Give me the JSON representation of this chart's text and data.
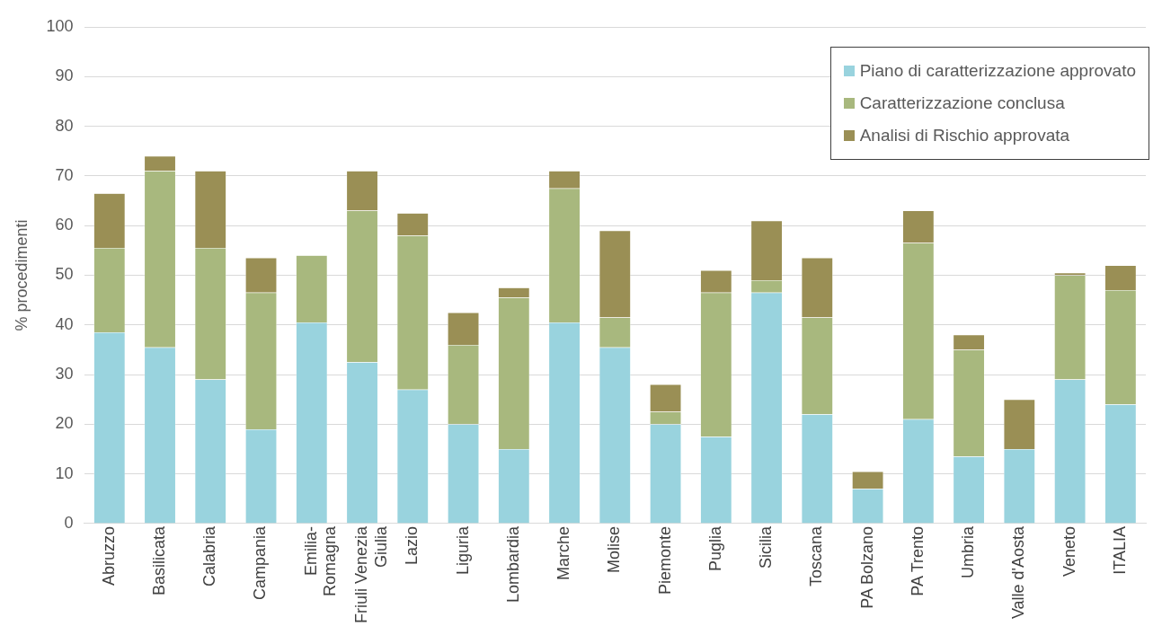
{
  "chart_data": {
    "type": "bar",
    "stacked": true,
    "ylabel": "% procedimenti",
    "categories": [
      "Abruzzo",
      "Basilicata",
      "Calabria",
      "Campania",
      "Emilia-Romagna",
      "Friuli Venezia Giulia",
      "Lazio",
      "Liguria",
      "Lombardia",
      "Marche",
      "Molise",
      "Piemonte",
      "Puglia",
      "Sicilia",
      "Toscana",
      "PA Bolzano",
      "PA Trento",
      "Umbria",
      "Valle d'Aosta",
      "Veneto",
      "ITALIA"
    ],
    "series": [
      {
        "name": "Piano di caratterizzazione approvato",
        "color": "#99d3de",
        "values": [
          38.5,
          35.5,
          29,
          19,
          40.5,
          32.5,
          27,
          20,
          15,
          40.5,
          35.5,
          20,
          17.5,
          46.5,
          22,
          7,
          21,
          13.5,
          15,
          29,
          24
        ]
      },
      {
        "name": "Caratterizzazione conclusa",
        "color": "#a8b87e",
        "values": [
          17,
          35.5,
          26.5,
          27.5,
          13.5,
          30.5,
          31,
          16,
          30.5,
          27,
          6,
          2.5,
          29,
          2.5,
          19.5,
          0,
          35.5,
          21.5,
          0,
          21,
          23
        ]
      },
      {
        "name": "Analisi di Rischio approvata",
        "color": "#9a8f55",
        "values": [
          11,
          3,
          15.5,
          7,
          0,
          8,
          4.5,
          6.5,
          2,
          3.5,
          17.5,
          5.5,
          4.5,
          12,
          12,
          3.5,
          6.5,
          3,
          10,
          0.5,
          5
        ]
      }
    ],
    "ylim": [
      0,
      100
    ],
    "yticks": [
      0,
      10,
      20,
      30,
      40,
      50,
      60,
      70,
      80,
      90,
      100
    ],
    "grid": "y",
    "legend": "top right"
  }
}
